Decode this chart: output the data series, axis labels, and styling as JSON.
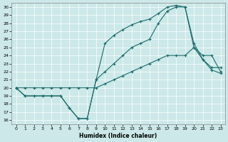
{
  "xlabel": "Humidex (Indice chaleur)",
  "ylabel": "",
  "xlim": [
    -0.5,
    23.5
  ],
  "ylim": [
    15.5,
    30.5
  ],
  "xticks": [
    0,
    1,
    2,
    3,
    4,
    5,
    6,
    7,
    8,
    9,
    10,
    11,
    12,
    13,
    14,
    15,
    16,
    17,
    18,
    19,
    20,
    21,
    22,
    23
  ],
  "yticks": [
    16,
    17,
    18,
    19,
    20,
    21,
    22,
    23,
    24,
    25,
    26,
    27,
    28,
    29,
    30
  ],
  "bg_color": "#cce8e8",
  "line_color": "#1a6b6b",
  "line1_x": [
    0,
    1,
    2,
    3,
    4,
    5,
    6,
    7,
    8,
    9,
    10,
    11,
    12,
    13,
    14,
    15,
    16,
    17,
    18,
    19,
    20,
    21,
    22,
    23
  ],
  "line1_y": [
    20,
    19,
    19,
    19,
    19,
    19,
    17.5,
    16.2,
    16.2,
    21,
    25.5,
    26.5,
    27.2,
    27.8,
    28.2,
    28.5,
    29.2,
    30,
    30.2,
    30,
    25.5,
    23.5,
    22.2,
    21.8
  ],
  "line2_x": [
    0,
    1,
    2,
    3,
    4,
    5,
    6,
    7,
    8,
    9,
    10,
    11,
    12,
    13,
    14,
    15,
    16,
    17,
    18,
    19,
    20,
    21,
    22,
    23
  ],
  "line2_y": [
    20,
    20,
    20,
    20,
    20,
    20,
    20,
    20,
    20,
    20,
    20.5,
    21,
    21.5,
    22,
    22.5,
    23,
    23.5,
    24,
    24,
    24,
    25,
    24,
    24,
    22
  ],
  "line3_x": [
    0,
    1,
    2,
    3,
    4,
    5,
    6,
    7,
    8,
    9,
    10,
    11,
    12,
    13,
    14,
    15,
    16,
    17,
    18,
    19,
    20,
    21,
    22,
    23
  ],
  "line3_y": [
    20,
    19,
    19,
    19,
    19,
    19,
    17.5,
    16.2,
    16.2,
    21,
    22,
    23,
    24,
    25,
    25.5,
    26,
    28,
    29.5,
    30,
    30,
    25,
    23.5,
    22.5,
    22.5
  ]
}
